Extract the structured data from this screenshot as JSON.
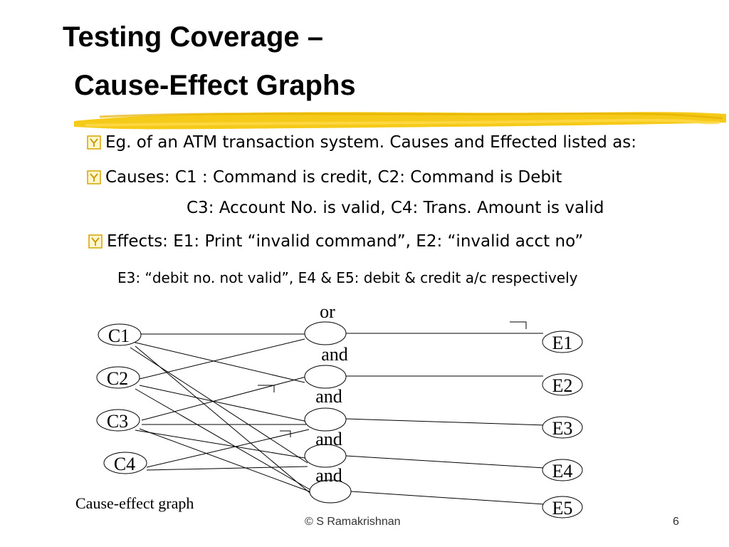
{
  "title": {
    "line1": "Testing Coverage –",
    "line2": "Cause-Effect Graphs"
  },
  "colors": {
    "accent": "#f5c400",
    "bullet_border": "#d9a300",
    "text": "#000000"
  },
  "bullets": {
    "b1": {
      "icon": "checkbox-y-icon",
      "text": "Eg. of an ATM transaction system. Causes and Effected listed as:"
    },
    "b2": {
      "icon": "checkbox-y-icon",
      "text": "Causes: C1 : Command is credit, C2: Command is Debit"
    },
    "b2_cont": "C3: Account No. is valid, C4: Trans. Amount is valid",
    "b3": {
      "icon": "checkbox-y-icon",
      "text": "Effects: E1: Print “invalid command”, E2: “invalid acct no”"
    },
    "b3_cont": "E3: “debit no. not valid”, E4 & E5: debit & credit a/c respectively"
  },
  "graph": {
    "causes": [
      "C1",
      "C2",
      "C3",
      "C4"
    ],
    "effects": [
      "E1",
      "E2",
      "E3",
      "E4",
      "E5"
    ],
    "operators": [
      "or",
      "and",
      "and",
      "and",
      "and"
    ],
    "caption": "Cause-effect graph"
  },
  "footer": {
    "copyright": "© S Ramakrishnan",
    "page": "6"
  }
}
